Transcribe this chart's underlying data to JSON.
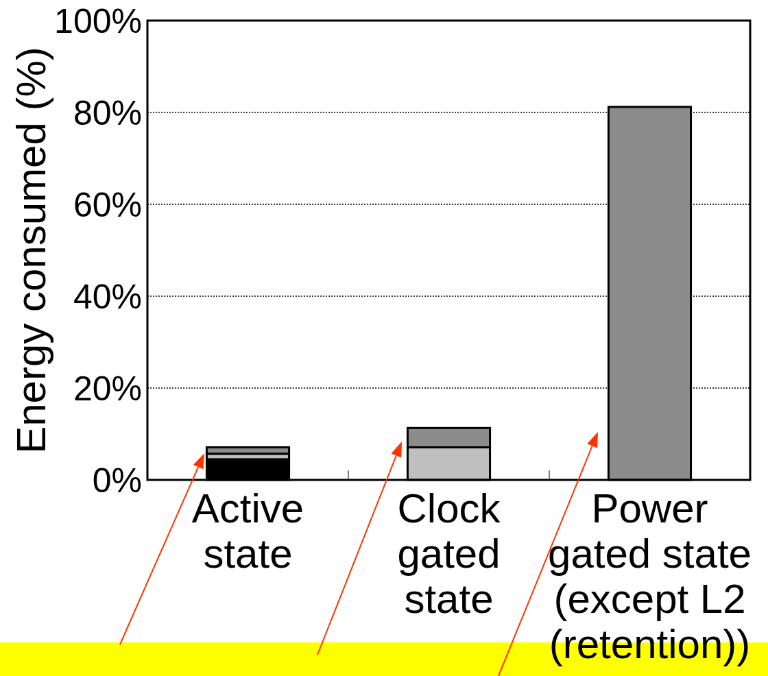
{
  "chart_data": {
    "type": "bar",
    "stacked": true,
    "categories": [
      "Active\nstate",
      "Clock\ngated\nstate",
      "Power\ngated state\n(except L2\n(retention))"
    ],
    "series": [
      {
        "color": "#000000",
        "values": [
          4.5,
          0,
          0
        ]
      },
      {
        "color": "#bfbfbf",
        "values": [
          1.2,
          7.1,
          0
        ]
      },
      {
        "color": "#8c8c8c",
        "values": [
          1.4,
          4.2,
          81.2
        ]
      }
    ],
    "ylabel": "Energy consumed (%)",
    "ylim": [
      0,
      100
    ],
    "yticks": [
      {
        "value": 0,
        "label": "0%"
      },
      {
        "value": 20,
        "label": "20%"
      },
      {
        "value": 40,
        "label": "40%"
      },
      {
        "value": 60,
        "label": "60%"
      },
      {
        "value": 80,
        "label": "80%"
      },
      {
        "value": 100,
        "label": "100%"
      }
    ],
    "grid": "y"
  }
}
